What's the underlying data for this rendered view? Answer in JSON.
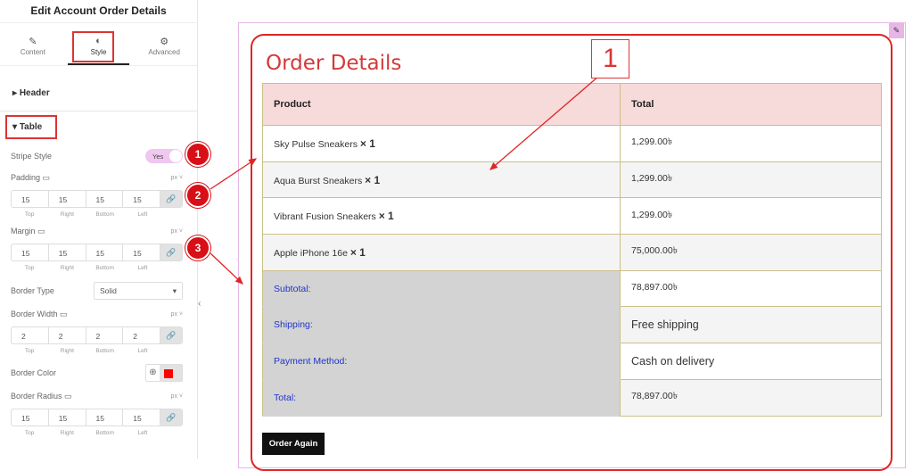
{
  "panel": {
    "title": "Edit Account Order Details",
    "tabs": [
      {
        "label": "Content",
        "icon": "pencil-icon"
      },
      {
        "label": "Style",
        "icon": "half-circle-icon"
      },
      {
        "label": "Advanced",
        "icon": "gear-icon"
      }
    ],
    "header_section": "Header",
    "table_section": "Table",
    "stripe_label": "Stripe Style",
    "stripe_value": "Yes",
    "padding": {
      "label": "Padding",
      "unit": "px",
      "values": [
        "15",
        "15",
        "15",
        "15"
      ]
    },
    "margin": {
      "label": "Margin",
      "unit": "px",
      "values": [
        "15",
        "15",
        "15",
        "15"
      ]
    },
    "border_type": {
      "label": "Border Type",
      "value": "Solid"
    },
    "border_width": {
      "label": "Border Width",
      "unit": "px",
      "values": [
        "2",
        "2",
        "2",
        "2"
      ]
    },
    "border_color": {
      "label": "Border Color",
      "value": "#e02424"
    },
    "border_radius": {
      "label": "Border Radius",
      "unit": "px",
      "values": [
        "15",
        "15",
        "15",
        "15"
      ]
    },
    "sides": [
      "Top",
      "Right",
      "Bottom",
      "Left"
    ]
  },
  "badges": [
    "1",
    "2",
    "3"
  ],
  "big_label": "1",
  "order": {
    "title": "Order Details",
    "headers": [
      "Product",
      "Total"
    ],
    "items": [
      {
        "name": "Sky Pulse Sneakers",
        "qty": "× 1",
        "total": "1,299.00৳"
      },
      {
        "name": "Aqua Burst Sneakers",
        "qty": "× 1",
        "total": "1,299.00৳"
      },
      {
        "name": "Vibrant Fusion Sneakers",
        "qty": "× 1",
        "total": "1,299.00৳"
      },
      {
        "name": "Apple iPhone 16e",
        "qty": "× 1",
        "total": "75,000.00৳"
      }
    ],
    "totals": [
      {
        "label": "Subtotal:",
        "value": "78,897.00৳"
      },
      {
        "label": "Shipping:",
        "value": "Free shipping"
      },
      {
        "label": "Payment Method:",
        "value": "Cash on delivery"
      },
      {
        "label": "Total:",
        "value": "78,897.00৳"
      }
    ],
    "button": "Order Again"
  }
}
